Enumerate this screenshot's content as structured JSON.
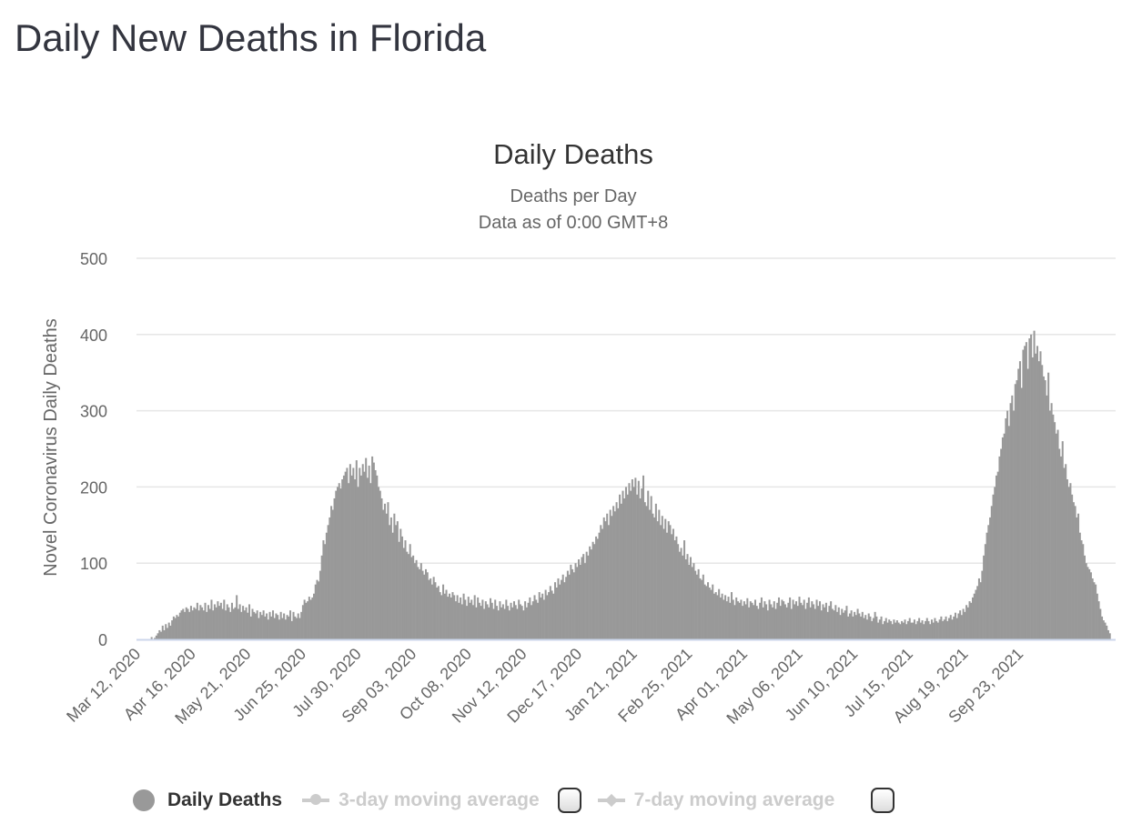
{
  "page_title": "Daily New Deaths in Florida",
  "chart_data": {
    "type": "bar",
    "title": "Daily Deaths",
    "subtitle": [
      "Deaths per Day",
      "Data as of 0:00 GMT+8"
    ],
    "xlabel": "",
    "ylabel": "Novel Coronavirus Daily Deaths",
    "ylim": [
      0,
      500
    ],
    "yticks": [
      0,
      100,
      200,
      300,
      400,
      500
    ],
    "grid": true,
    "x_start": "2020-03-12",
    "x_interval": "1 day",
    "xtick_labels": [
      "Mar 12, 2020",
      "Apr 16, 2020",
      "May 21, 2020",
      "Jun 25, 2020",
      "Jul 30, 2020",
      "Sep 03, 2020",
      "Oct 08, 2020",
      "Nov 12, 2020",
      "Dec 17, 2020",
      "Jan 21, 2021",
      "Feb 25, 2021",
      "Apr 01, 2021",
      "May 06, 2021",
      "Jun 10, 2021",
      "Jul 15, 2021",
      "Aug 19, 2021",
      "Sep 23, 2021"
    ],
    "xtick_every_days": 35,
    "color": "#999999",
    "legend_position": "bottom",
    "series": [
      {
        "name": "Daily Deaths",
        "visible": true,
        "values": [
          0,
          0,
          0,
          0,
          0,
          0,
          0,
          3,
          0,
          2,
          5,
          8,
          12,
          10,
          18,
          12,
          20,
          15,
          22,
          18,
          25,
          30,
          28,
          32,
          30,
          35,
          38,
          40,
          36,
          42,
          40,
          36,
          44,
          38,
          42,
          40,
          48,
          38,
          45,
          42,
          38,
          48,
          36,
          45,
          40,
          52,
          38,
          46,
          42,
          50,
          44,
          48,
          40,
          52,
          38,
          46,
          42,
          36,
          48,
          40,
          42,
          58,
          40,
          46,
          36,
          44,
          38,
          42,
          35,
          46,
          30,
          40,
          36,
          34,
          38,
          28,
          36,
          32,
          38,
          30,
          34,
          26,
          36,
          30,
          38,
          28,
          34,
          32,
          26,
          36,
          28,
          34,
          26,
          32,
          30,
          38,
          24,
          36,
          30,
          28,
          34,
          28,
          36,
          45,
          52,
          48,
          50,
          56,
          52,
          55,
          60,
          72,
          78,
          76,
          90,
          110,
          130,
          125,
          140,
          150,
          160,
          175,
          170,
          185,
          195,
          200,
          205,
          198,
          210,
          215,
          220,
          225,
          205,
          230,
          215,
          225,
          210,
          235,
          200,
          225,
          215,
          230,
          220,
          238,
          212,
          228,
          205,
          240,
          232,
          222,
          215,
          200,
          195,
          185,
          170,
          178,
          165,
          180,
          150,
          160,
          140,
          165,
          150,
          155,
          128,
          145,
          135,
          120,
          130,
          115,
          112,
          125,
          108,
          110,
          100,
          104,
          95,
          92,
          100,
          90,
          85,
          92,
          88,
          78,
          80,
          72,
          82,
          75,
          68,
          70,
          62,
          58,
          72,
          60,
          65,
          56,
          60,
          55,
          62,
          58,
          50,
          58,
          48,
          55,
          46,
          60,
          52,
          44,
          56,
          48,
          52,
          45,
          58,
          42,
          55,
          48,
          44,
          52,
          40,
          50,
          46,
          42,
          54,
          48,
          40,
          52,
          44,
          38,
          50,
          42,
          46,
          40,
          52,
          44,
          38,
          48,
          42,
          50,
          45,
          40,
          52,
          46,
          44,
          38,
          50,
          42,
          48,
          55,
          45,
          50,
          58,
          52,
          48,
          62,
          55,
          60,
          52,
          65,
          58,
          62,
          70,
          64,
          60,
          75,
          68,
          80,
          72,
          78,
          85,
          75,
          82,
          90,
          85,
          98,
          92,
          88,
          100,
          95,
          105,
          98,
          108,
          112,
          100,
          115,
          110,
          122,
          118,
          128,
          125,
          135,
          132,
          140,
          150,
          145,
          160,
          155,
          165,
          150,
          170,
          162,
          175,
          168,
          180,
          172,
          190,
          178,
          195,
          185,
          200,
          190,
          205,
          195,
          210,
          200,
          212,
          190,
          208,
          185,
          198,
          215,
          180,
          175,
          195,
          170,
          188,
          165,
          160,
          178,
          155,
          170,
          150,
          162,
          145,
          158,
          140,
          155,
          150,
          138,
          145,
          130,
          135,
          125,
          115,
          120,
          110,
          130,
          105,
          112,
          98,
          108,
          95,
          100,
          90,
          85,
          92,
          80,
          78,
          85,
          72,
          70,
          75,
          68,
          65,
          72,
          60,
          62,
          58,
          66,
          55,
          60,
          52,
          58,
          50,
          56,
          48,
          62,
          52,
          45,
          55,
          50,
          48,
          52,
          44,
          50,
          46,
          54,
          42,
          50,
          48,
          45,
          52,
          44,
          40,
          48,
          55,
          42,
          50,
          46,
          38,
          52,
          46,
          42,
          50,
          40,
          48,
          55,
          44,
          52,
          50,
          46,
          42,
          48,
          55,
          40,
          52,
          46,
          50,
          44,
          56,
          48,
          45,
          52,
          40,
          48,
          55,
          42,
          50,
          46,
          40,
          52,
          44,
          50,
          38,
          46,
          42,
          48,
          36,
          44,
          50,
          40,
          38,
          45,
          36,
          42,
          32,
          40,
          35,
          38,
          44,
          30,
          34,
          38,
          30,
          36,
          32,
          40,
          34,
          30,
          36,
          28,
          32,
          26,
          34,
          30,
          24,
          28,
          36,
          30,
          22,
          26,
          30,
          20,
          24,
          28,
          22,
          26,
          24,
          20,
          26,
          22,
          25,
          22,
          20,
          24,
          22,
          26,
          20,
          24,
          28,
          22,
          22,
          26,
          20,
          24,
          28,
          22,
          25,
          20,
          24,
          28,
          24,
          20,
          26,
          22,
          28,
          24,
          22,
          26,
          30,
          24,
          26,
          30,
          24,
          28,
          32,
          26,
          30,
          35,
          28,
          34,
          38,
          32,
          40,
          36,
          45,
          42,
          50,
          48,
          55,
          60,
          65,
          70,
          80,
          75,
          90,
          110,
          125,
          140,
          150,
          160,
          175,
          190,
          200,
          215,
          220,
          240,
          250,
          265,
          270,
          290,
          300,
          280,
          310,
          320,
          300,
          335,
          340,
          355,
          365,
          330,
          380,
          385,
          390,
          355,
          395,
          400,
          370,
          405,
          375,
          385,
          365,
          378,
          360,
          345,
          340,
          320,
          350,
          300,
          310,
          295,
          285,
          270,
          275,
          250,
          240,
          260,
          225,
          230,
          210,
          200,
          205,
          190,
          180,
          175,
          160,
          165,
          140,
          130,
          125,
          110,
          100,
          95,
          92,
          88,
          80,
          75,
          72,
          60,
          50,
          40,
          30,
          25,
          22,
          18,
          12,
          8
        ]
      },
      {
        "name": "3-day moving average",
        "visible": false
      },
      {
        "name": "7-day moving average",
        "visible": false
      }
    ]
  }
}
